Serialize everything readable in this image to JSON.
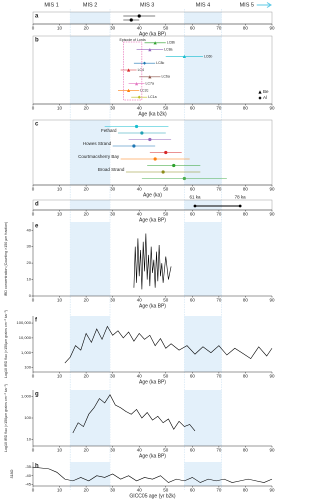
{
  "mis": {
    "labels": [
      "MIS 1",
      "MIS 2",
      "MIS 3",
      "MIS 4",
      "MIS 5"
    ],
    "boundaries": [
      14,
      29,
      57,
      71
    ]
  },
  "chart_data": [
    {
      "type": "errorbar",
      "letter": "a",
      "xlabel": "Age (ka BP)",
      "xlim": [
        0,
        90
      ],
      "xticks": [
        0,
        10,
        20,
        30,
        40,
        50,
        60,
        70,
        80,
        90
      ],
      "points": [
        {
          "x": 40,
          "err": 6,
          "color": "#000000",
          "marker": "circle"
        },
        {
          "x": 37,
          "err": 3,
          "color": "#000000",
          "marker": "circle"
        }
      ]
    },
    {
      "type": "errorbar",
      "letter": "b",
      "xlabel": "Age (ka b2k)",
      "xlim": [
        0,
        90
      ],
      "xticks": [
        0,
        10,
        20,
        30,
        40,
        50,
        60,
        70,
        80,
        90
      ],
      "legend": [
        {
          "name": "Be",
          "marker": "triangle"
        },
        {
          "name": "Al",
          "marker": "diamond"
        }
      ],
      "annotation": {
        "text": "Episode of Lords",
        "xlim": [
          34,
          41
        ]
      },
      "points": [
        {
          "label": "LC8b",
          "x": 46,
          "err": 4,
          "color": "#2ca02c",
          "marker": "triangle"
        },
        {
          "label": "LC8a",
          "x": 44,
          "err": 5,
          "color": "#9467bd",
          "marker": "triangle"
        },
        {
          "label": "LC6b",
          "x": 57,
          "err": 7,
          "color": "#17becf",
          "marker": "triangle"
        },
        {
          "label": "LC8c",
          "x": 42,
          "err": 4,
          "color": "#1f77b4",
          "marker": "diamond"
        },
        {
          "label": "LC4",
          "x": 36,
          "err": 3,
          "color": "#d62728",
          "marker": "triangle"
        },
        {
          "label": "LC6a",
          "x": 44,
          "err": 4,
          "color": "#8c564b",
          "marker": "triangle"
        },
        {
          "label": "LC7a",
          "x": 39,
          "err": 3,
          "color": "#e377c2",
          "marker": "triangle"
        },
        {
          "label": "LC2c",
          "x": 36,
          "err": 4,
          "color": "#ff7f0e",
          "marker": "triangle"
        },
        {
          "label": "LC1a",
          "x": 40,
          "err": 3,
          "color": "#bcbd22",
          "marker": "diamond"
        }
      ]
    },
    {
      "type": "errorbar",
      "letter": "c",
      "xlabel": "Age (ka)",
      "xlim": [
        0,
        90
      ],
      "xticks": [
        0,
        10,
        20,
        30,
        40,
        50,
        60,
        70,
        80,
        90
      ],
      "points": [
        {
          "x": 39,
          "err": 12,
          "color": "#17becf",
          "marker": "circle"
        },
        {
          "label": "Fethard",
          "x": 41,
          "err": 9,
          "color": "#1f9fb4",
          "marker": "circle"
        },
        {
          "x": 44,
          "err": 8,
          "color": "#9467bd",
          "marker": "circle"
        },
        {
          "label": "Howes Strand",
          "x": 38,
          "err": 8,
          "color": "#1f77b4",
          "marker": "circle"
        },
        {
          "x": 50,
          "err": 6,
          "color": "#d62728",
          "marker": "circle"
        },
        {
          "label": "Courtmacsherry Bay",
          "x": 46,
          "err": 13,
          "color": "#ff7f0e",
          "marker": "circle"
        },
        {
          "x": 53,
          "err": 10,
          "color": "#2ca02c",
          "marker": "circle"
        },
        {
          "label": "Broad Strand",
          "x": 49,
          "err": 14,
          "color": "#8c8c1a",
          "marker": "circle"
        },
        {
          "x": 57,
          "err": 16,
          "color": "#4caf50",
          "marker": "circle"
        }
      ]
    },
    {
      "type": "range",
      "letter": "d",
      "xlabel": "Age (ka BP)",
      "xlim": [
        0,
        90
      ],
      "xticks": [
        0,
        10,
        20,
        30,
        40,
        50,
        60,
        70,
        80,
        90
      ],
      "values": [
        61,
        78
      ],
      "value_labels": [
        "61 ka",
        "78 ka"
      ]
    },
    {
      "type": "line",
      "letter": "e",
      "xlabel": "Age (ka BP)",
      "ylabel": "IRD concentration (Counting >150 µm fraction)",
      "xlim": [
        0,
        90
      ],
      "xticks": [
        0,
        10,
        20,
        30,
        40,
        50,
        60,
        70,
        80,
        90
      ],
      "ylim": [
        0,
        45
      ],
      "yticks": [
        0,
        10,
        20,
        30,
        40
      ],
      "color": "#000000",
      "x": [
        38,
        38.5,
        39,
        39.5,
        40,
        40.5,
        41,
        41.5,
        42,
        42.5,
        43,
        43.5,
        44,
        44.5,
        45,
        45.5,
        46,
        46.5,
        47,
        47.5,
        48,
        48.5,
        49,
        50,
        51,
        52
      ],
      "values": [
        5,
        30,
        8,
        35,
        12,
        28,
        4,
        33,
        15,
        38,
        10,
        25,
        6,
        30,
        14,
        22,
        5,
        27,
        9,
        31,
        12,
        20,
        8,
        24,
        10,
        18
      ]
    },
    {
      "type": "line",
      "letter": "f",
      "xlabel": "Age (ka BP)",
      "ylabel": "Log10 IRD flux (>150µm grains cm⁻² ka⁻¹)",
      "xlim": [
        0,
        90
      ],
      "xticks": [
        0,
        10,
        20,
        30,
        40,
        50,
        60,
        70,
        80,
        90
      ],
      "log": true,
      "ylim": [
        50,
        300000
      ],
      "yticks": [
        100,
        {
          "value": 1000,
          "label": "1,000"
        },
        {
          "value": 10000,
          "label": "10,000"
        },
        {
          "value": 100000,
          "label": "100,000"
        }
      ],
      "color": "#000000",
      "x": [
        12,
        14,
        16,
        18,
        20,
        22,
        24,
        26,
        28,
        30,
        32,
        34,
        36,
        38,
        40,
        42,
        44,
        46,
        48,
        50,
        52,
        55,
        58,
        61,
        64,
        67,
        70,
        73,
        76,
        79,
        82,
        85,
        88,
        90
      ],
      "values": [
        200,
        500,
        3000,
        1500,
        20000,
        5000,
        40000,
        8000,
        60000,
        15000,
        30000,
        10000,
        25000,
        6000,
        20000,
        8000,
        15000,
        3000,
        9000,
        2000,
        4000,
        1500,
        3000,
        800,
        2500,
        1000,
        3000,
        700,
        2000,
        900,
        400,
        2500,
        600,
        2000
      ]
    },
    {
      "type": "line",
      "letter": "g",
      "xlabel": "Age (ka BP)",
      "ylabel": "Log10 IRD flux (>150µm grains cm⁻² ka⁻¹)",
      "xlim": [
        0,
        90
      ],
      "xticks": [
        0,
        10,
        20,
        30,
        40,
        50,
        60,
        70,
        80,
        90
      ],
      "log": true,
      "ylim": [
        5,
        2000
      ],
      "yticks": [
        10,
        100,
        {
          "value": 1000,
          "label": "1,000"
        }
      ],
      "color": "#000000",
      "x": [
        15,
        17,
        19,
        21,
        23,
        25,
        27,
        29,
        31,
        33,
        35,
        37,
        39,
        41,
        43,
        45,
        47,
        49,
        51,
        53,
        55,
        57,
        59,
        61
      ],
      "values": [
        20,
        60,
        40,
        150,
        300,
        800,
        500,
        1200,
        400,
        300,
        200,
        150,
        250,
        100,
        180,
        80,
        120,
        60,
        90,
        30,
        70,
        40,
        50,
        25
      ]
    },
    {
      "type": "line",
      "letter": "h",
      "xlabel": "GICC05 age (yr b2k)",
      "ylabel": "δ18O",
      "xlim": [
        0,
        90
      ],
      "xticks": [
        0,
        10,
        20,
        30,
        40,
        50,
        60,
        70,
        80,
        90
      ],
      "ylim": [
        -46,
        -32
      ],
      "yticks": [
        -45,
        -40,
        -35
      ],
      "color": "#000000",
      "x": [
        0,
        3,
        6,
        9,
        12,
        15,
        18,
        21,
        24,
        27,
        30,
        33,
        36,
        39,
        42,
        45,
        48,
        51,
        54,
        57,
        60,
        63,
        66,
        69,
        72,
        75,
        78,
        81,
        84,
        87,
        90
      ],
      "values": [
        -35,
        -35.5,
        -36,
        -38,
        -42,
        -43,
        -41,
        -43,
        -40,
        -41,
        -39,
        -42,
        -40,
        -43,
        -41,
        -42,
        -40,
        -44,
        -42,
        -43,
        -41,
        -44,
        -42,
        -43,
        -42,
        -44,
        -43,
        -42,
        -43,
        -44,
        -42
      ]
    }
  ]
}
